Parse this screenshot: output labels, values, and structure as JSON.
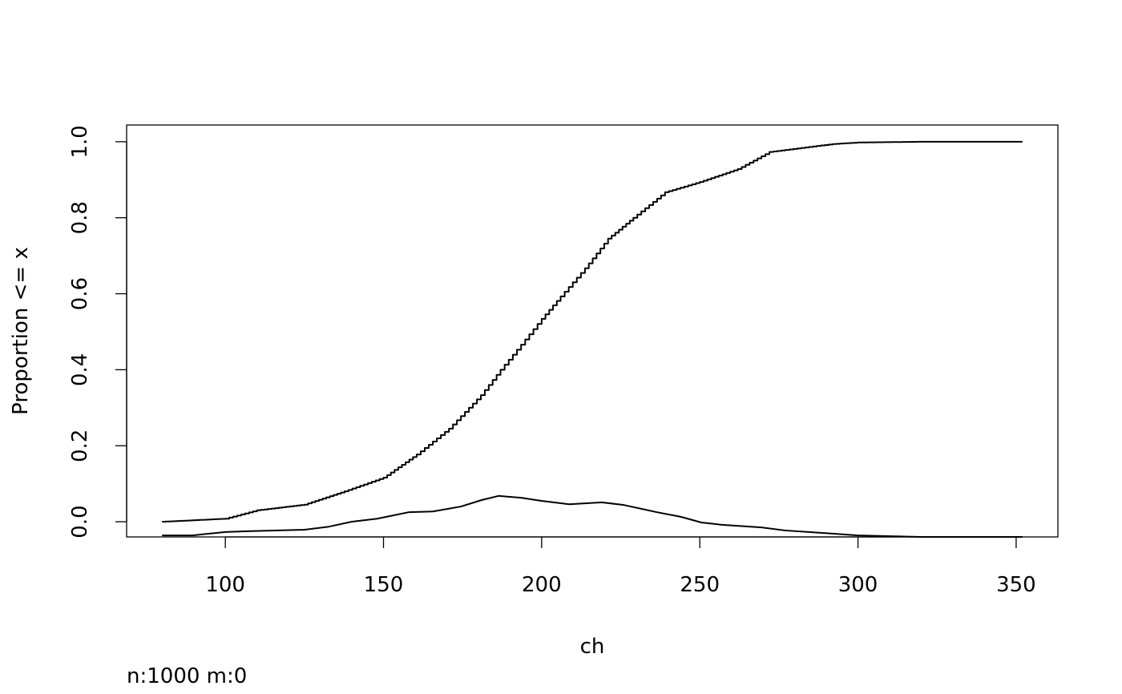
{
  "chart_data": {
    "type": "line",
    "title": "",
    "xlabel": "ch",
    "ylabel": "Proportion <= x",
    "footnote": "n:1000 m:0",
    "xlim": [
      68.8,
      363.2
    ],
    "ylim": [
      -0.04,
      1.044
    ],
    "x_ticks": [
      100,
      150,
      200,
      250,
      300,
      350
    ],
    "x_tick_labels": [
      "100",
      "150",
      "200",
      "250",
      "300",
      "350"
    ],
    "y_ticks": [
      0,
      0.2,
      0.4,
      0.6,
      0.8,
      1.0
    ],
    "y_tick_labels": [
      "0.0",
      "0.2",
      "0.4",
      "0.6",
      "0.8",
      "1.0"
    ],
    "grid": false,
    "line_color": "#000000",
    "series": [
      {
        "kind": "ecdf-step",
        "x": [
          80,
          100,
          110,
          125,
          137.7,
          150,
          160.5,
          170.7,
          180.8,
          187,
          193.5,
          200,
          206,
          213.7,
          221,
          229,
          239,
          250,
          262,
          272,
          279.6,
          292,
          300,
          320,
          352
        ],
        "y": [
          0,
          0.008,
          0.03,
          0.045,
          0.08,
          0.116,
          0.177,
          0.245,
          0.333,
          0.4,
          0.466,
          0.534,
          0.593,
          0.667,
          0.745,
          0.8,
          0.867,
          0.894,
          0.928,
          0.973,
          0.981,
          0.994,
          0.998,
          1.0,
          1.0
        ]
      },
      {
        "kind": "density",
        "x": [
          80,
          89.6,
          100,
          107,
          125,
          132.7,
          140,
          148,
          158,
          165.6,
          174.5,
          181,
          186.4,
          193.5,
          200,
          208.7,
          219,
          226,
          236.5,
          244,
          250.5,
          257,
          269.5,
          277,
          289.7,
          300,
          320,
          352
        ],
        "y": [
          -0.036,
          -0.036,
          -0.027,
          -0.025,
          -0.021,
          -0.013,
          0.0,
          0.008,
          0.025,
          0.027,
          0.04,
          0.057,
          0.068,
          0.063,
          0.055,
          0.046,
          0.051,
          0.044,
          0.025,
          0.013,
          -0.002,
          -0.008,
          -0.015,
          -0.023,
          -0.03,
          -0.036,
          -0.04,
          -0.04
        ]
      }
    ]
  }
}
